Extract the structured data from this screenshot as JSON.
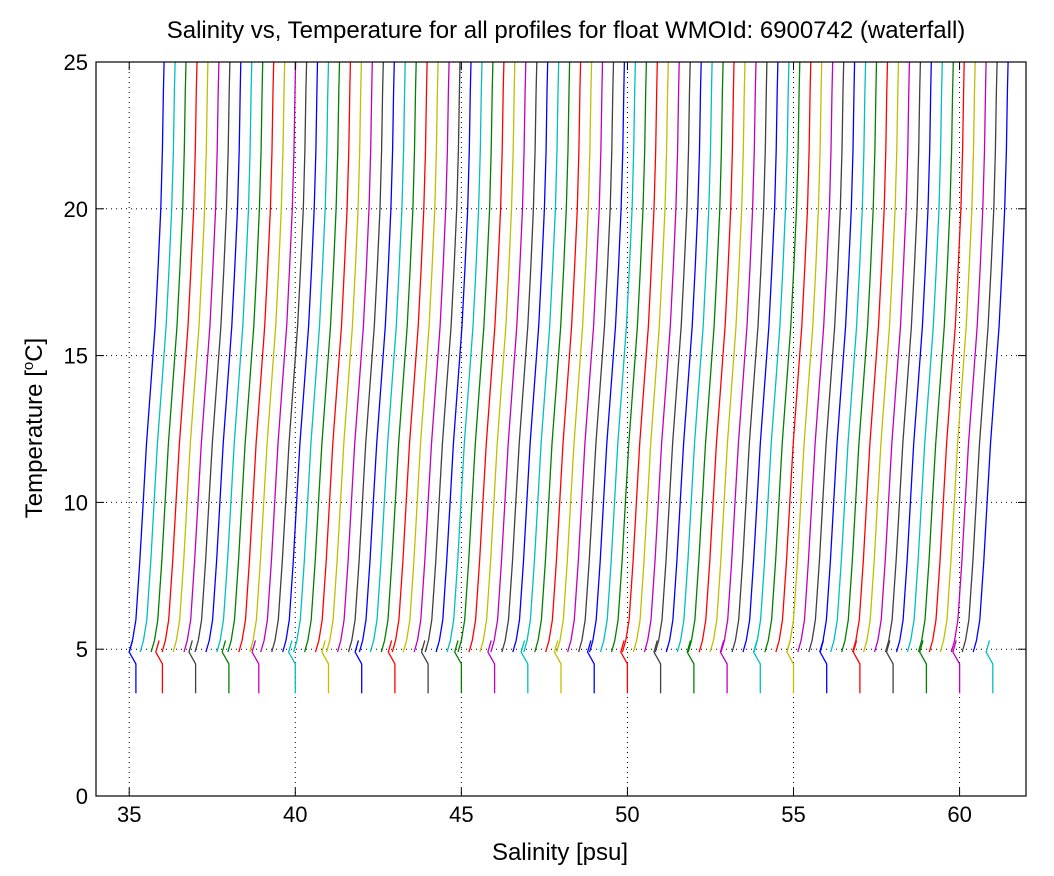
{
  "chart_data": {
    "type": "line",
    "title": "Salinity vs, Temperature for all profiles for float WMOId: 6900742 (waterfall)",
    "xlabel": "Salinity [psu]",
    "ylabel_main": "Temperature [",
    "ylabel_sup": "o",
    "ylabel_tail": "C]",
    "xlim": [
      34,
      62
    ],
    "ylim": [
      0,
      25
    ],
    "xticks": [
      35,
      40,
      45,
      50,
      55,
      60
    ],
    "yticks": [
      0,
      5,
      10,
      15,
      20,
      25
    ],
    "grid": "dotted",
    "series_colors": [
      "#0000ff",
      "#00bfbf",
      "#008000",
      "#ff0000",
      "#bfbf00",
      "#bf00bf",
      "#404040"
    ],
    "profiles": {
      "count": 78,
      "first_offset_salinity": 35.2,
      "offset_step_salinity": 0.33,
      "deep_offsets": [
        35.2,
        36.0,
        37.0,
        38.0,
        38.9,
        40.0,
        41.0,
        42.0,
        43.0,
        44.0,
        45.0,
        46.0,
        47.0,
        48.0,
        49.0,
        50.0,
        51.0,
        52.0,
        53.0,
        54.0,
        55.0,
        56.0,
        57.0,
        58.0,
        59.0,
        60.0,
        61.0
      ],
      "shape": [
        {
          "temperature": 3.5,
          "salinity_anomaly": 0.0
        },
        {
          "temperature": 4.5,
          "salinity_anomaly": 0.0
        },
        {
          "temperature": 4.9,
          "salinity_anomaly": -0.2
        },
        {
          "temperature": 5.3,
          "salinity_anomaly": -0.1
        },
        {
          "temperature": 6.0,
          "salinity_anomaly": 0.0
        },
        {
          "temperature": 8.0,
          "salinity_anomaly": 0.12
        },
        {
          "temperature": 10.0,
          "salinity_anomaly": 0.22
        },
        {
          "temperature": 12.0,
          "salinity_anomaly": 0.32
        },
        {
          "temperature": 14.0,
          "salinity_anomaly": 0.45
        },
        {
          "temperature": 16.0,
          "salinity_anomaly": 0.58
        },
        {
          "temperature": 18.0,
          "salinity_anomaly": 0.67
        },
        {
          "temperature": 20.0,
          "salinity_anomaly": 0.75
        },
        {
          "temperature": 22.0,
          "salinity_anomaly": 0.8
        },
        {
          "temperature": 24.0,
          "salinity_anomaly": 0.83
        },
        {
          "temperature": 25.0,
          "salinity_anomaly": 0.85
        }
      ]
    }
  }
}
